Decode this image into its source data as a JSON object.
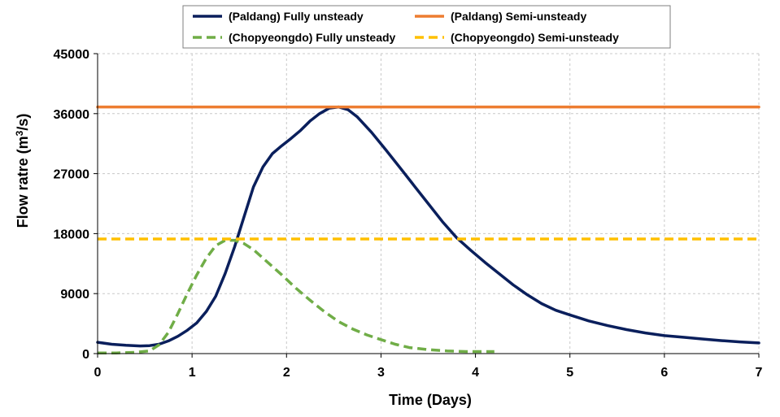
{
  "chart_data": {
    "type": "line",
    "title": "",
    "xlabel": "Time (Days)",
    "ylabel_main": "Flow ratre (m",
    "ylabel_sup": "3",
    "ylabel_end": "/s)",
    "xlim": [
      0,
      7
    ],
    "ylim": [
      0,
      45000
    ],
    "x_ticks": [
      "0",
      "1",
      "2",
      "3",
      "4",
      "5",
      "6",
      "7"
    ],
    "y_ticks": [
      "0",
      "9000",
      "18000",
      "27000",
      "36000",
      "45000"
    ],
    "grid": true,
    "legend_position": "top",
    "series": [
      {
        "name": "(Paldang) Fully unsteady",
        "color": "#0a1f5c",
        "style": "solid",
        "x": [
          0,
          0.15,
          0.3,
          0.45,
          0.55,
          0.65,
          0.75,
          0.85,
          0.95,
          1.05,
          1.15,
          1.25,
          1.35,
          1.45,
          1.55,
          1.65,
          1.75,
          1.85,
          1.95,
          2.05,
          2.15,
          2.25,
          2.35,
          2.45,
          2.55,
          2.65,
          2.75,
          2.9,
          3.05,
          3.2,
          3.35,
          3.5,
          3.65,
          3.8,
          3.95,
          4.1,
          4.25,
          4.4,
          4.55,
          4.7,
          4.85,
          5.0,
          5.2,
          5.4,
          5.6,
          5.8,
          6.0,
          6.2,
          6.4,
          6.6,
          6.8,
          7.0
        ],
        "y": [
          1700,
          1400,
          1250,
          1150,
          1200,
          1400,
          1900,
          2600,
          3500,
          4600,
          6300,
          8600,
          12000,
          16000,
          20500,
          25000,
          28000,
          30000,
          31200,
          32300,
          33500,
          34900,
          36000,
          36800,
          37000,
          36600,
          35500,
          33200,
          30600,
          27900,
          25200,
          22500,
          19800,
          17400,
          15500,
          13700,
          12000,
          10300,
          8800,
          7500,
          6500,
          5800,
          4900,
          4200,
          3600,
          3100,
          2700,
          2450,
          2200,
          1950,
          1750,
          1600
        ]
      },
      {
        "name": "(Paldang) Semi-unsteady",
        "color": "#ed7d31",
        "style": "solid",
        "x": [
          0,
          7
        ],
        "y": [
          37000,
          37000
        ]
      },
      {
        "name": "(Chopyeongdo) Fully unsteady",
        "color": "#70ad47",
        "style": "dashed",
        "x": [
          0,
          0.2,
          0.4,
          0.55,
          0.65,
          0.75,
          0.85,
          0.95,
          1.05,
          1.15,
          1.25,
          1.35,
          1.45,
          1.55,
          1.65,
          1.8,
          1.95,
          2.1,
          2.25,
          2.4,
          2.55,
          2.7,
          2.85,
          3.0,
          3.15,
          3.3,
          3.5,
          3.7,
          3.9,
          4.05,
          4.2
        ],
        "y": [
          100,
          100,
          200,
          400,
          1300,
          3200,
          6000,
          9000,
          11800,
          14300,
          16200,
          17000,
          17000,
          16500,
          15600,
          13700,
          11800,
          9800,
          8000,
          6300,
          4800,
          3700,
          2800,
          2100,
          1400,
          900,
          600,
          400,
          300,
          300,
          300
        ]
      },
      {
        "name": "(Chopyeongdo) Semi-unsteady",
        "color": "#ffc000",
        "style": "dashed",
        "x": [
          0,
          7
        ],
        "y": [
          17200,
          17200
        ]
      }
    ]
  }
}
